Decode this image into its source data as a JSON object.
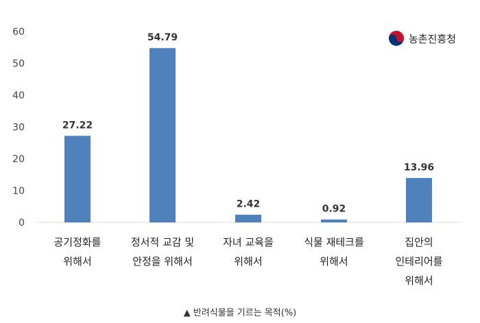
{
  "logo": {
    "text": "농촌진흥청",
    "colors": {
      "red": "#c8102e",
      "blue": "#003478"
    }
  },
  "caption": "▲ 반려식물을 기르는 목적(%)",
  "chart_data": {
    "type": "bar",
    "categories": [
      [
        "공기정화를",
        "위해서"
      ],
      [
        "정서적 교감 및",
        "안정을 위해서"
      ],
      [
        "자녀 교육을",
        "위해서"
      ],
      [
        "식물 재테크를",
        "위해서"
      ],
      [
        "집안의",
        "인테리어를",
        "위해서"
      ]
    ],
    "values": [
      27.22,
      54.79,
      2.42,
      0.92,
      13.96
    ],
    "value_labels": [
      "27.22",
      "54.79",
      "2.42",
      "0.92",
      "13.96"
    ],
    "yticks": [
      "0",
      "10",
      "20",
      "30",
      "40",
      "50",
      "60"
    ],
    "ylim": [
      0,
      60
    ],
    "grid": false,
    "bar_color": "#4f81bd"
  }
}
